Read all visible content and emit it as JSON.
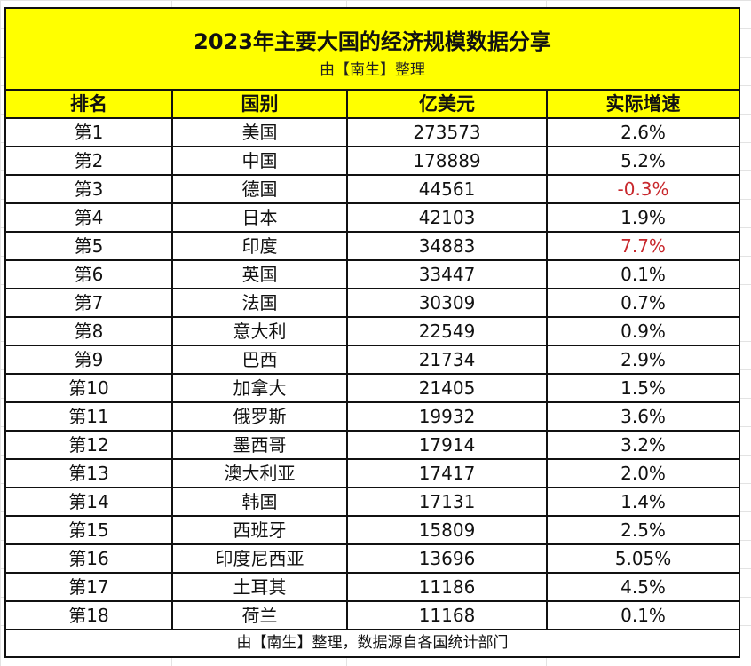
{
  "title": "2023年主要大国的经济规模数据分享",
  "subtitle": "由【南生】整理",
  "columns": [
    "排名",
    "国别",
    "亿美元",
    "实际增速"
  ],
  "rows": [
    {
      "rank": "第1",
      "country": "美国",
      "gdp": "273573",
      "growth": "2.6%",
      "highlight": false
    },
    {
      "rank": "第2",
      "country": "中国",
      "gdp": "178889",
      "growth": "5.2%",
      "highlight": false
    },
    {
      "rank": "第3",
      "country": "德国",
      "gdp": "44561",
      "growth": "-0.3%",
      "highlight": true
    },
    {
      "rank": "第4",
      "country": "日本",
      "gdp": "42103",
      "growth": "1.9%",
      "highlight": false
    },
    {
      "rank": "第5",
      "country": "印度",
      "gdp": "34883",
      "growth": "7.7%",
      "highlight": true
    },
    {
      "rank": "第6",
      "country": "英国",
      "gdp": "33447",
      "growth": "0.1%",
      "highlight": false
    },
    {
      "rank": "第7",
      "country": "法国",
      "gdp": "30309",
      "growth": "0.7%",
      "highlight": false
    },
    {
      "rank": "第8",
      "country": "意大利",
      "gdp": "22549",
      "growth": "0.9%",
      "highlight": false
    },
    {
      "rank": "第9",
      "country": "巴西",
      "gdp": "21734",
      "growth": "2.9%",
      "highlight": false
    },
    {
      "rank": "第10",
      "country": "加拿大",
      "gdp": "21405",
      "growth": "1.5%",
      "highlight": false
    },
    {
      "rank": "第11",
      "country": "俄罗斯",
      "gdp": "19932",
      "growth": "3.6%",
      "highlight": false
    },
    {
      "rank": "第12",
      "country": "墨西哥",
      "gdp": "17914",
      "growth": "3.2%",
      "highlight": false
    },
    {
      "rank": "第13",
      "country": "澳大利亚",
      "gdp": "17417",
      "growth": "2.0%",
      "highlight": false
    },
    {
      "rank": "第14",
      "country": "韩国",
      "gdp": "17131",
      "growth": "1.4%",
      "highlight": false
    },
    {
      "rank": "第15",
      "country": "西班牙",
      "gdp": "15809",
      "growth": "2.5%",
      "highlight": false
    },
    {
      "rank": "第16",
      "country": "印度尼西亚",
      "gdp": "13696",
      "growth": "5.05%",
      "highlight": false
    },
    {
      "rank": "第17",
      "country": "土耳其",
      "gdp": "11186",
      "growth": "4.5%",
      "highlight": false
    },
    {
      "rank": "第18",
      "country": "荷兰",
      "gdp": "11168",
      "growth": "0.1%",
      "highlight": false
    }
  ],
  "footer": "由【南生】整理，数据源自各国统计部门",
  "colors": {
    "header_bg": "#ffff00",
    "highlight_text": "#c8282d",
    "border": "#111111"
  }
}
